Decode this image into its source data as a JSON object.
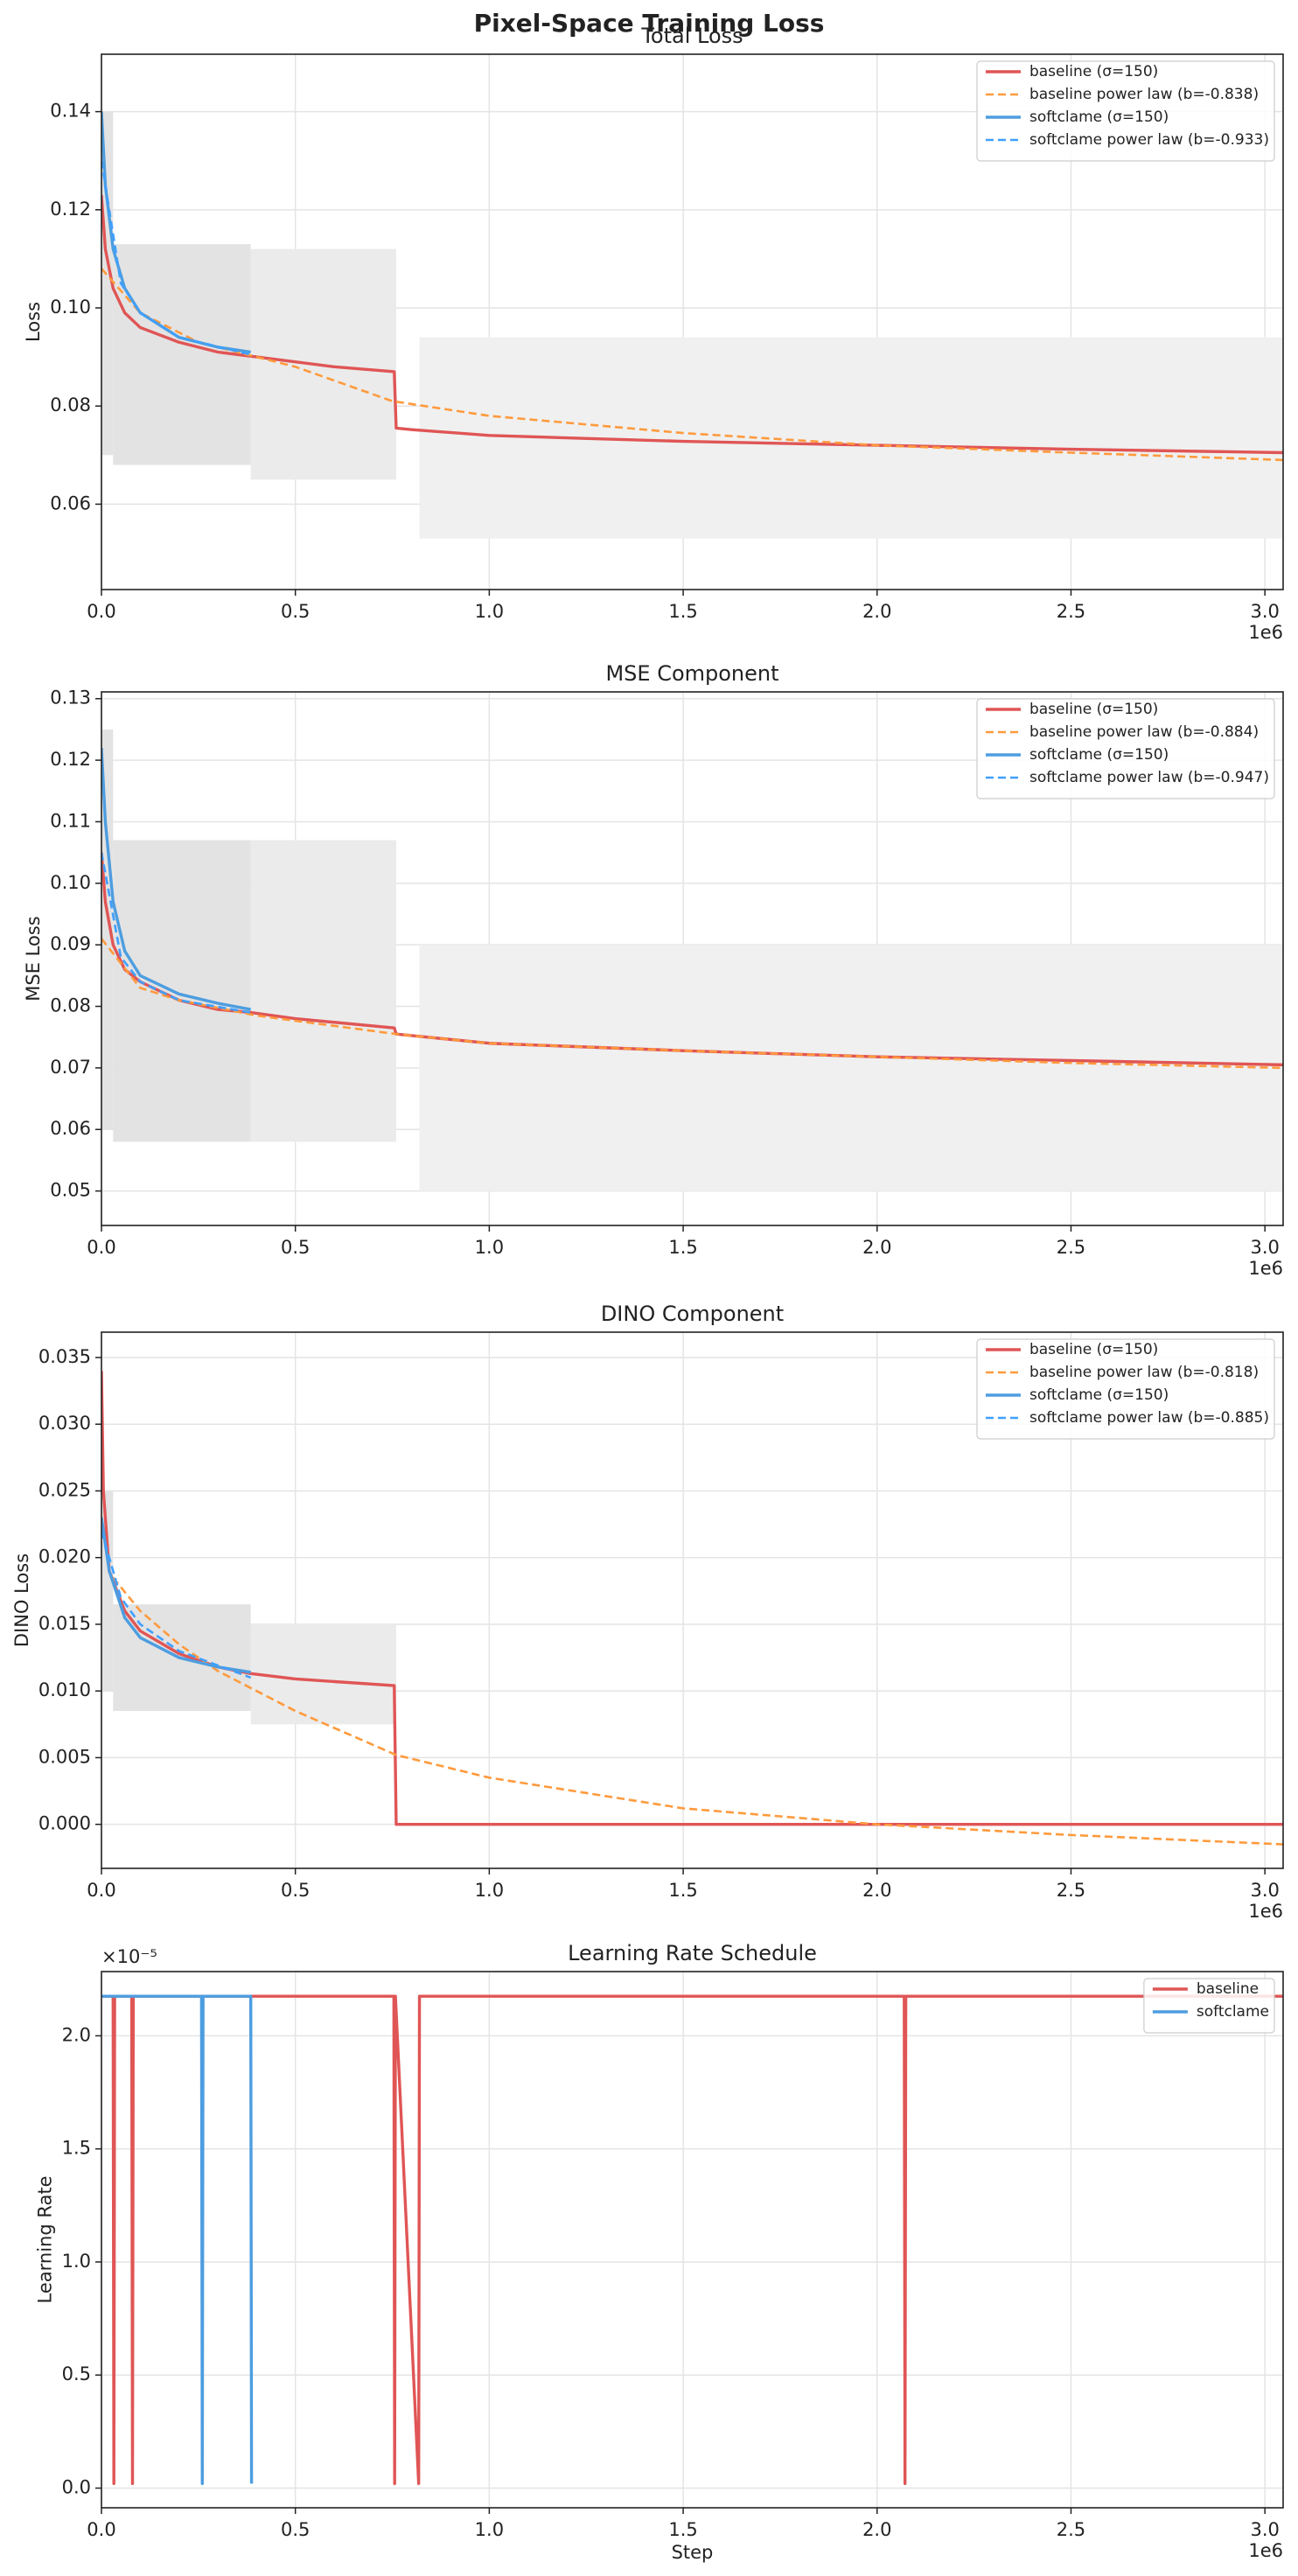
{
  "title": "Pixel-Space Training Loss",
  "chart_data": [
    {
      "type": "line",
      "title": "Total Loss",
      "y_label": "Loss",
      "x_offset_label": "1e6",
      "xlim": [
        0,
        3047000
      ],
      "ylim": [
        0.0426,
        0.1517
      ],
      "grid": true,
      "legend": "upper right",
      "xticks": [
        {
          "value": 0,
          "label": "0.0"
        },
        {
          "value": 500000,
          "label": "0.5"
        },
        {
          "value": 1000000,
          "label": "1.0"
        },
        {
          "value": 1500000,
          "label": "1.5"
        },
        {
          "value": 2000000,
          "label": "2.0"
        },
        {
          "value": 2500000,
          "label": "2.5"
        },
        {
          "value": 3000000,
          "label": "3.0"
        }
      ],
      "yticks": [
        0.06,
        0.08,
        {
          "value": 0.1,
          "label": "0.10"
        },
        0.12,
        0.14
      ],
      "noise": [
        {
          "x": [
            0,
            30000
          ],
          "lower": 0.07,
          "upper": 0.14,
          "color": "#e3e3e3"
        },
        {
          "x": [
            30000,
            385000
          ],
          "lower": 0.068,
          "upper": 0.113,
          "color": "#e3e3e3"
        },
        {
          "x": [
            385000,
            760000
          ],
          "lower": 0.065,
          "upper": 0.112,
          "color": "#ebebeb"
        },
        {
          "x": [
            820000,
            3047000
          ],
          "lower": 0.053,
          "upper": 0.094,
          "color": "#f0f0f0"
        }
      ],
      "series": [
        {
          "name": "baseline (σ=150)",
          "color": "#e05555",
          "dash": false,
          "x": [
            0,
            10000,
            30000,
            60000,
            100000,
            200000,
            300000,
            400000,
            500000,
            600000,
            755000,
            760000,
            800000,
            1000000,
            1500000,
            2000000,
            2500000,
            3047000
          ],
          "values": [
            0.123,
            0.112,
            0.104,
            0.099,
            0.096,
            0.093,
            0.091,
            0.09,
            0.089,
            0.088,
            0.087,
            0.0755,
            0.0752,
            0.074,
            0.0728,
            0.072,
            0.0712,
            0.0705
          ]
        },
        {
          "name": "baseline power law  (b=-0.838)",
          "color": "#ff9a3c",
          "dash": true,
          "x": [
            0,
            100000,
            250000,
            500000,
            750000,
            1000000,
            1500000,
            2000000,
            2500000,
            3047000
          ],
          "values": [
            0.108,
            0.099,
            0.093,
            0.088,
            0.081,
            0.078,
            0.0745,
            0.072,
            0.0705,
            0.069
          ]
        },
        {
          "name": "softclame (σ=150)",
          "color": "#4d9de0",
          "dash": false,
          "x": [
            0,
            10000,
            30000,
            60000,
            100000,
            200000,
            300000,
            385000
          ],
          "values": [
            0.14,
            0.125,
            0.112,
            0.104,
            0.099,
            0.094,
            0.092,
            0.091
          ]
        },
        {
          "name": "softclame power law  (b=-0.933)",
          "color": "#3fa0ff",
          "dash": true,
          "x": [
            0,
            50000,
            100000,
            200000,
            385000
          ],
          "values": [
            0.13,
            0.105,
            0.099,
            0.094,
            0.0905
          ]
        }
      ]
    },
    {
      "type": "line",
      "title": "MSE Component",
      "y_label": "MSE Loss",
      "x_offset_label": "1e6",
      "xlim": [
        0,
        3047000
      ],
      "ylim": [
        0.0444,
        0.1311
      ],
      "grid": true,
      "legend": "upper right",
      "xticks": [
        {
          "value": 0,
          "label": "0.0"
        },
        {
          "value": 500000,
          "label": "0.5"
        },
        {
          "value": 1000000,
          "label": "1.0"
        },
        {
          "value": 1500000,
          "label": "1.5"
        },
        {
          "value": 2000000,
          "label": "2.0"
        },
        {
          "value": 2500000,
          "label": "2.5"
        },
        {
          "value": 3000000,
          "label": "3.0"
        }
      ],
      "yticks": [
        0.05,
        0.06,
        0.07,
        0.08,
        0.09,
        {
          "value": 0.1,
          "label": "0.10"
        },
        0.11,
        0.12,
        0.13
      ],
      "noise": [
        {
          "x": [
            0,
            30000
          ],
          "lower": 0.06,
          "upper": 0.125,
          "color": "#e3e3e3"
        },
        {
          "x": [
            30000,
            385000
          ],
          "lower": 0.058,
          "upper": 0.107,
          "color": "#e3e3e3"
        },
        {
          "x": [
            385000,
            760000
          ],
          "lower": 0.058,
          "upper": 0.107,
          "color": "#ebebeb"
        },
        {
          "x": [
            820000,
            3047000
          ],
          "lower": 0.05,
          "upper": 0.09,
          "color": "#f0f0f0"
        }
      ],
      "series": [
        {
          "name": "baseline (σ=150)",
          "color": "#e05555",
          "dash": false,
          "x": [
            0,
            10000,
            30000,
            60000,
            100000,
            200000,
            300000,
            385000,
            500000,
            755000,
            760000,
            1000000,
            1500000,
            2000000,
            2500000,
            3047000
          ],
          "values": [
            0.105,
            0.097,
            0.09,
            0.086,
            0.084,
            0.081,
            0.0795,
            0.079,
            0.078,
            0.0765,
            0.0755,
            0.074,
            0.0728,
            0.0718,
            0.0712,
            0.0705
          ]
        },
        {
          "name": "baseline power law  (b=-0.884)",
          "color": "#ff9a3c",
          "dash": true,
          "x": [
            0,
            100000,
            200000,
            400000,
            760000,
            1000000,
            1500000,
            2000000,
            2500000,
            3047000
          ],
          "values": [
            0.091,
            0.083,
            0.081,
            0.0785,
            0.0755,
            0.074,
            0.0728,
            0.0718,
            0.0708,
            0.07
          ]
        },
        {
          "name": "softclame (σ=150)",
          "color": "#4d9de0",
          "dash": false,
          "x": [
            0,
            10000,
            30000,
            60000,
            100000,
            200000,
            300000,
            385000
          ],
          "values": [
            0.122,
            0.11,
            0.097,
            0.089,
            0.085,
            0.082,
            0.0805,
            0.0795
          ]
        },
        {
          "name": "softclame power law  (b=-0.947)",
          "color": "#3fa0ff",
          "dash": true,
          "x": [
            0,
            50000,
            100000,
            200000,
            385000
          ],
          "values": [
            0.105,
            0.088,
            0.084,
            0.081,
            0.079
          ]
        }
      ]
    },
    {
      "type": "line",
      "title": "DINO Component",
      "y_label": "DINO Loss",
      "x_offset_label": "1e6",
      "xlim": [
        0,
        3047000
      ],
      "ylim": [
        -0.0033,
        0.0369
      ],
      "grid": true,
      "legend": "upper right",
      "xticks": [
        {
          "value": 0,
          "label": "0.0"
        },
        {
          "value": 500000,
          "label": "0.5"
        },
        {
          "value": 1000000,
          "label": "1.0"
        },
        {
          "value": 1500000,
          "label": "1.5"
        },
        {
          "value": 2000000,
          "label": "2.0"
        },
        {
          "value": 2500000,
          "label": "2.5"
        },
        {
          "value": 3000000,
          "label": "3.0"
        }
      ],
      "yticks": [
        {
          "value": 0,
          "label": "0.000"
        },
        0.005,
        {
          "value": 0.01,
          "label": "0.010"
        },
        0.015,
        {
          "value": 0.02,
          "label": "0.020"
        },
        0.025,
        {
          "value": 0.03,
          "label": "0.030"
        },
        0.035
      ],
      "noise": [
        {
          "x": [
            0,
            30000
          ],
          "lower": 0.01,
          "upper": 0.025,
          "color": "#e3e3e3"
        },
        {
          "x": [
            30000,
            385000
          ],
          "lower": 0.0085,
          "upper": 0.0165,
          "color": "#e3e3e3"
        },
        {
          "x": [
            385000,
            760000
          ],
          "lower": 0.0075,
          "upper": 0.015,
          "color": "#ebebeb"
        }
      ],
      "series": [
        {
          "name": "baseline (σ=150)",
          "color": "#e05555",
          "dash": false,
          "x": [
            0,
            5000,
            20000,
            60000,
            100000,
            200000,
            300000,
            385000,
            500000,
            755000,
            760000,
            3047000
          ],
          "values": [
            0.034,
            0.025,
            0.019,
            0.016,
            0.0145,
            0.0128,
            0.0118,
            0.0113,
            0.0109,
            0.0104,
            0,
            0
          ]
        },
        {
          "name": "baseline power law  (b=-0.818)",
          "color": "#ff9a3c",
          "dash": true,
          "x": [
            30000,
            100000,
            200000,
            300000,
            500000,
            760000,
            1000000,
            1500000,
            2000000,
            2500000,
            3047000
          ],
          "values": [
            0.0185,
            0.016,
            0.0135,
            0.0115,
            0.0085,
            0.0052,
            0.0035,
            0.0012,
            0,
            -0.0008,
            -0.0015
          ]
        },
        {
          "name": "softclame (σ=150)",
          "color": "#4d9de0",
          "dash": false,
          "x": [
            0,
            20000,
            60000,
            100000,
            200000,
            300000,
            385000
          ],
          "values": [
            0.023,
            0.019,
            0.0155,
            0.014,
            0.0125,
            0.0118,
            0.0114
          ]
        },
        {
          "name": "softclame power law  (b=-0.885)",
          "color": "#3fa0ff",
          "dash": true,
          "x": [
            0,
            50000,
            100000,
            200000,
            385000
          ],
          "values": [
            0.022,
            0.017,
            0.015,
            0.013,
            0.011
          ]
        }
      ]
    },
    {
      "type": "line",
      "title": "Learning Rate Schedule",
      "y_label": "Learning Rate",
      "x_label": "Step",
      "x_offset_label": "1e6",
      "y_offset_label": "×10⁻⁵",
      "xlim": [
        0,
        3047000
      ],
      "ylim": [
        -8.7e-07,
        2.284e-05
      ],
      "grid": true,
      "legend": "upper right",
      "xticks": [
        {
          "value": 0,
          "label": "0.0"
        },
        {
          "value": 500000,
          "label": "0.5"
        },
        {
          "value": 1000000,
          "label": "1.0"
        },
        {
          "value": 1500000,
          "label": "1.5"
        },
        {
          "value": 2000000,
          "label": "2.0"
        },
        {
          "value": 2500000,
          "label": "2.5"
        },
        {
          "value": 3000000,
          "label": "3.0"
        }
      ],
      "yticks": [
        {
          "value": 0,
          "label": "0.0"
        },
        {
          "value": 5e-06,
          "label": "0.5"
        },
        {
          "value": 1e-05,
          "label": "1.0"
        },
        {
          "value": 1.5e-05,
          "label": "1.5"
        },
        {
          "value": 2e-05,
          "label": "2.0"
        }
      ],
      "series": [
        {
          "name": "baseline",
          "color": "#e05555",
          "dash": false,
          "x": [
            0,
            30000,
            32000,
            34000,
            78000,
            80000,
            82000,
            754000,
            756000,
            758000,
            818000,
            820000,
            2070000,
            2072000,
            2074000,
            3047000
          ],
          "values": [
            2.175e-05,
            2.175e-05,
            2e-07,
            2.175e-05,
            2.175e-05,
            2e-07,
            2.175e-05,
            2.175e-05,
            2e-07,
            2.175e-05,
            2e-07,
            2.175e-05,
            2.175e-05,
            2e-07,
            2.175e-05,
            2.175e-05
          ]
        },
        {
          "name": "softclame",
          "color": "#4d9de0",
          "dash": false,
          "x": [
            0,
            258000,
            260000,
            262000,
            385000,
            387000
          ],
          "values": [
            2.175e-05,
            2.175e-05,
            2e-07,
            2.175e-05,
            2.175e-05,
            2e-07
          ]
        }
      ]
    }
  ]
}
